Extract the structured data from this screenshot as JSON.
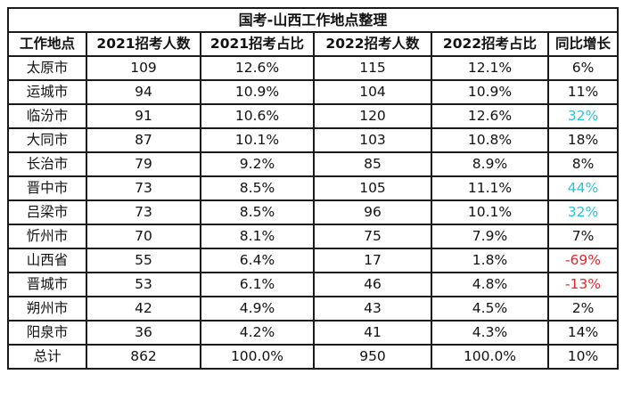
{
  "title": "国考-山西工作地点整理",
  "headers": [
    "工作地点",
    "2021招考人数",
    "2021招考占比",
    "2022招考人数",
    "2022招考占比",
    "同比增长"
  ],
  "rows": [
    {
      "place": "太原市",
      "n2021": "109",
      "p2021": "12.6%",
      "n2022": "115",
      "p2022": "12.1%",
      "growth": "6%",
      "growth_color": "#111111"
    },
    {
      "place": "运城市",
      "n2021": "94",
      "p2021": "10.9%",
      "n2022": "104",
      "p2022": "10.9%",
      "growth": "11%",
      "growth_color": "#111111"
    },
    {
      "place": "临汾市",
      "n2021": "91",
      "p2021": "10.6%",
      "n2022": "120",
      "p2022": "12.6%",
      "growth": "32%",
      "growth_color": "#2cc1d8"
    },
    {
      "place": "大同市",
      "n2021": "87",
      "p2021": "10.1%",
      "n2022": "103",
      "p2022": "10.8%",
      "growth": "18%",
      "growth_color": "#111111"
    },
    {
      "place": "长治市",
      "n2021": "79",
      "p2021": "9.2%",
      "n2022": "85",
      "p2022": "8.9%",
      "growth": "8%",
      "growth_color": "#111111"
    },
    {
      "place": "晋中市",
      "n2021": "73",
      "p2021": "8.5%",
      "n2022": "105",
      "p2022": "11.1%",
      "growth": "44%",
      "growth_color": "#2cc1d8"
    },
    {
      "place": "吕梁市",
      "n2021": "73",
      "p2021": "8.5%",
      "n2022": "96",
      "p2022": "10.1%",
      "growth": "32%",
      "growth_color": "#2cc1d8"
    },
    {
      "place": "忻州市",
      "n2021": "70",
      "p2021": "8.1%",
      "n2022": "75",
      "p2022": "7.9%",
      "growth": "7%",
      "growth_color": "#111111"
    },
    {
      "place": "山西省",
      "n2021": "55",
      "p2021": "6.4%",
      "n2022": "17",
      "p2022": "1.8%",
      "growth": "-69%",
      "growth_color": "#e0272b"
    },
    {
      "place": "晋城市",
      "n2021": "53",
      "p2021": "6.1%",
      "n2022": "46",
      "p2022": "4.8%",
      "growth": "-13%",
      "growth_color": "#e0272b"
    },
    {
      "place": "朔州市",
      "n2021": "42",
      "p2021": "4.9%",
      "n2022": "43",
      "p2022": "4.5%",
      "growth": "2%",
      "growth_color": "#111111"
    },
    {
      "place": "阳泉市",
      "n2021": "36",
      "p2021": "4.2%",
      "n2022": "41",
      "p2022": "4.3%",
      "growth": "14%",
      "growth_color": "#111111"
    }
  ],
  "total": {
    "place": "总计",
    "n2021": "862",
    "p2021": "100.0%",
    "n2022": "950",
    "p2022": "100.0%",
    "growth": "10%"
  }
}
